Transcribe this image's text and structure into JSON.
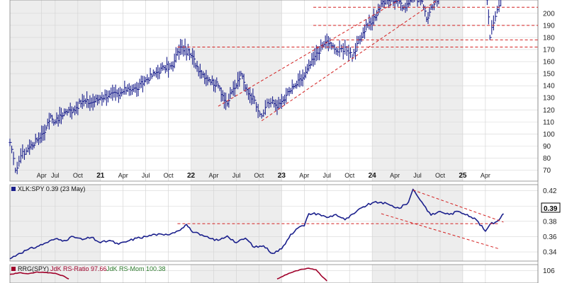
{
  "chart_data": {
    "type": "line",
    "time_labels": [
      {
        "t": 0.35,
        "label": "Apr",
        "kind": "month"
      },
      {
        "t": 0.5,
        "label": "Jul",
        "kind": "month"
      },
      {
        "t": 0.75,
        "label": "Oct",
        "kind": "month"
      },
      {
        "t": 1.0,
        "label": "21",
        "kind": "year"
      },
      {
        "t": 1.25,
        "label": "Apr",
        "kind": "month"
      },
      {
        "t": 1.5,
        "label": "Jul",
        "kind": "month"
      },
      {
        "t": 1.75,
        "label": "Oct",
        "kind": "month"
      },
      {
        "t": 2.0,
        "label": "22",
        "kind": "year"
      },
      {
        "t": 2.25,
        "label": "Apr",
        "kind": "month"
      },
      {
        "t": 2.5,
        "label": "Jul",
        "kind": "month"
      },
      {
        "t": 2.75,
        "label": "Oct",
        "kind": "month"
      },
      {
        "t": 3.0,
        "label": "23",
        "kind": "year"
      },
      {
        "t": 3.25,
        "label": "Apr",
        "kind": "month"
      },
      {
        "t": 3.5,
        "label": "Jul",
        "kind": "month"
      },
      {
        "t": 3.75,
        "label": "Oct",
        "kind": "month"
      },
      {
        "t": 4.0,
        "label": "24",
        "kind": "year"
      },
      {
        "t": 4.25,
        "label": "Apr",
        "kind": "month"
      },
      {
        "t": 4.5,
        "label": "Jul",
        "kind": "month"
      },
      {
        "t": 4.75,
        "label": "Oct",
        "kind": "month"
      },
      {
        "t": 5.0,
        "label": "25",
        "kind": "year"
      },
      {
        "t": 5.25,
        "label": "Apr",
        "kind": "month"
      }
    ],
    "price_panel": {
      "y_ticks": [
        70,
        80,
        90,
        100,
        110,
        120,
        130,
        140,
        150,
        160,
        170,
        180,
        190,
        200
      ],
      "y_range": [
        61,
        211
      ],
      "color": "#1a1f8c",
      "series": [
        {
          "t": 0.0,
          "v": 93
        },
        {
          "t": 0.06,
          "v": 70
        },
        {
          "t": 0.12,
          "v": 82
        },
        {
          "t": 0.2,
          "v": 88
        },
        {
          "t": 0.3,
          "v": 95
        },
        {
          "t": 0.4,
          "v": 105
        },
        {
          "t": 0.45,
          "v": 115
        },
        {
          "t": 0.5,
          "v": 110
        },
        {
          "t": 0.6,
          "v": 118
        },
        {
          "t": 0.7,
          "v": 120
        },
        {
          "t": 0.8,
          "v": 127
        },
        {
          "t": 0.9,
          "v": 126
        },
        {
          "t": 1.0,
          "v": 130
        },
        {
          "t": 1.1,
          "v": 133
        },
        {
          "t": 1.2,
          "v": 132
        },
        {
          "t": 1.3,
          "v": 138
        },
        {
          "t": 1.4,
          "v": 137
        },
        {
          "t": 1.5,
          "v": 145
        },
        {
          "t": 1.6,
          "v": 150
        },
        {
          "t": 1.7,
          "v": 155
        },
        {
          "t": 1.8,
          "v": 156
        },
        {
          "t": 1.85,
          "v": 168
        },
        {
          "t": 1.9,
          "v": 172
        },
        {
          "t": 2.0,
          "v": 165
        },
        {
          "t": 2.1,
          "v": 152
        },
        {
          "t": 2.2,
          "v": 145
        },
        {
          "t": 2.3,
          "v": 140
        },
        {
          "t": 2.4,
          "v": 125
        },
        {
          "t": 2.45,
          "v": 135
        },
        {
          "t": 2.5,
          "v": 140
        },
        {
          "t": 2.55,
          "v": 150
        },
        {
          "t": 2.6,
          "v": 138
        },
        {
          "t": 2.7,
          "v": 128
        },
        {
          "t": 2.78,
          "v": 115
        },
        {
          "t": 2.82,
          "v": 122
        },
        {
          "t": 2.9,
          "v": 128
        },
        {
          "t": 2.95,
          "v": 122
        },
        {
          "t": 3.0,
          "v": 127
        },
        {
          "t": 3.05,
          "v": 132
        },
        {
          "t": 3.15,
          "v": 140
        },
        {
          "t": 3.25,
          "v": 148
        },
        {
          "t": 3.35,
          "v": 162
        },
        {
          "t": 3.45,
          "v": 173
        },
        {
          "t": 3.5,
          "v": 177
        },
        {
          "t": 3.55,
          "v": 173
        },
        {
          "t": 3.62,
          "v": 168
        },
        {
          "t": 3.7,
          "v": 172
        },
        {
          "t": 3.78,
          "v": 163
        },
        {
          "t": 3.85,
          "v": 178
        },
        {
          "t": 3.95,
          "v": 190
        },
        {
          "t": 4.0,
          "v": 192
        },
        {
          "t": 4.1,
          "v": 208
        },
        {
          "t": 4.2,
          "v": 212
        },
        {
          "t": 4.3,
          "v": 210
        },
        {
          "t": 4.35,
          "v": 205
        },
        {
          "t": 4.45,
          "v": 214
        },
        {
          "t": 4.55,
          "v": 210
        },
        {
          "t": 4.6,
          "v": 195
        },
        {
          "t": 4.65,
          "v": 205
        },
        {
          "t": 4.75,
          "v": 215
        },
        {
          "t": 5.27,
          "v": 211
        },
        {
          "t": 5.3,
          "v": 180
        },
        {
          "t": 5.34,
          "v": 192
        },
        {
          "t": 5.38,
          "v": 203
        },
        {
          "t": 5.42,
          "v": 212
        }
      ],
      "resistance_lines": [
        {
          "t0": 1.85,
          "t1": 5.85,
          "v": 172
        },
        {
          "t0": 3.55,
          "t1": 5.85,
          "v": 178
        },
        {
          "t0": 3.35,
          "t1": 5.85,
          "v": 190
        },
        {
          "t0": 3.35,
          "t1": 5.85,
          "v": 205
        }
      ],
      "channel_lines": [
        {
          "t0": 2.3,
          "v0": 123,
          "t1": 4.5,
          "v1": 220
        },
        {
          "t0": 2.78,
          "v0": 111,
          "t1": 4.7,
          "v1": 210
        }
      ]
    },
    "rs_panel": {
      "legend_label": "XLK:SPY 0.39 (23 May)",
      "last_value_label": "0.39",
      "y_ticks": [
        0.34,
        0.36,
        0.38,
        0.4,
        0.42
      ],
      "y_range": [
        0.328,
        0.428
      ],
      "color": "#1a1f8c",
      "series": [
        {
          "t": 0.0,
          "v": 0.331
        },
        {
          "t": 0.1,
          "v": 0.338
        },
        {
          "t": 0.2,
          "v": 0.343
        },
        {
          "t": 0.3,
          "v": 0.347
        },
        {
          "t": 0.4,
          "v": 0.352
        },
        {
          "t": 0.5,
          "v": 0.357
        },
        {
          "t": 0.6,
          "v": 0.355
        },
        {
          "t": 0.7,
          "v": 0.36
        },
        {
          "t": 0.8,
          "v": 0.356
        },
        {
          "t": 0.9,
          "v": 0.359
        },
        {
          "t": 1.0,
          "v": 0.352
        },
        {
          "t": 1.1,
          "v": 0.355
        },
        {
          "t": 1.2,
          "v": 0.35
        },
        {
          "t": 1.3,
          "v": 0.354
        },
        {
          "t": 1.4,
          "v": 0.358
        },
        {
          "t": 1.5,
          "v": 0.36
        },
        {
          "t": 1.6,
          "v": 0.363
        },
        {
          "t": 1.7,
          "v": 0.362
        },
        {
          "t": 1.8,
          "v": 0.365
        },
        {
          "t": 1.9,
          "v": 0.371
        },
        {
          "t": 1.95,
          "v": 0.376
        },
        {
          "t": 2.0,
          "v": 0.368
        },
        {
          "t": 2.1,
          "v": 0.362
        },
        {
          "t": 2.2,
          "v": 0.358
        },
        {
          "t": 2.3,
          "v": 0.355
        },
        {
          "t": 2.4,
          "v": 0.361
        },
        {
          "t": 2.5,
          "v": 0.352
        },
        {
          "t": 2.6,
          "v": 0.358
        },
        {
          "t": 2.7,
          "v": 0.346
        },
        {
          "t": 2.8,
          "v": 0.348
        },
        {
          "t": 2.9,
          "v": 0.338
        },
        {
          "t": 3.0,
          "v": 0.344
        },
        {
          "t": 3.1,
          "v": 0.363
        },
        {
          "t": 3.2,
          "v": 0.373
        },
        {
          "t": 3.25,
          "v": 0.374
        },
        {
          "t": 3.3,
          "v": 0.39
        },
        {
          "t": 3.4,
          "v": 0.39
        },
        {
          "t": 3.5,
          "v": 0.385
        },
        {
          "t": 3.6,
          "v": 0.389
        },
        {
          "t": 3.7,
          "v": 0.382
        },
        {
          "t": 3.8,
          "v": 0.39
        },
        {
          "t": 3.9,
          "v": 0.399
        },
        {
          "t": 4.0,
          "v": 0.404
        },
        {
          "t": 4.1,
          "v": 0.405
        },
        {
          "t": 4.2,
          "v": 0.401
        },
        {
          "t": 4.3,
          "v": 0.397
        },
        {
          "t": 4.4,
          "v": 0.405
        },
        {
          "t": 4.45,
          "v": 0.422
        },
        {
          "t": 4.55,
          "v": 0.405
        },
        {
          "t": 4.65,
          "v": 0.388
        },
        {
          "t": 4.75,
          "v": 0.393
        },
        {
          "t": 4.85,
          "v": 0.389
        },
        {
          "t": 4.95,
          "v": 0.393
        },
        {
          "t": 5.05,
          "v": 0.389
        },
        {
          "t": 5.15,
          "v": 0.382
        },
        {
          "t": 5.25,
          "v": 0.367
        },
        {
          "t": 5.3,
          "v": 0.376
        },
        {
          "t": 5.38,
          "v": 0.38
        },
        {
          "t": 5.45,
          "v": 0.39
        }
      ],
      "support_line": {
        "t0": 1.85,
        "t1": 5.4,
        "v": 0.377
      },
      "channel_lines": [
        {
          "t0": 4.45,
          "v0": 0.421,
          "t1": 5.45,
          "v1": 0.379
        },
        {
          "t0": 4.1,
          "v0": 0.39,
          "t1": 5.4,
          "v1": 0.344
        }
      ]
    },
    "rrg_panel": {
      "legend_label_main": "RRG(SPY)",
      "legend_label_ratio": "JdK RS-Ratio 97.66",
      "legend_label_mom": "JdK RS-Mom 100.38",
      "y_ticks": [
        106
      ],
      "y_range": [
        94,
        112
      ],
      "ratio_color": "#a0002a",
      "mom_color": "#2a7a2a",
      "ratio_series": [
        {
          "t": 0.0,
          "v": 102.5
        },
        {
          "t": 0.1,
          "v": 104.0
        },
        {
          "t": 0.2,
          "v": 103.0
        },
        {
          "t": 0.3,
          "v": 104.8
        },
        {
          "t": 0.4,
          "v": 104.3
        },
        {
          "t": 0.5,
          "v": 103.5
        },
        {
          "t": 0.6,
          "v": 100.5
        },
        {
          "t": 0.65,
          "v": 98.0
        },
        {
          "t": 2.95,
          "v": 98.0
        },
        {
          "t": 3.1,
          "v": 104.0
        },
        {
          "t": 3.2,
          "v": 107.0
        },
        {
          "t": 3.3,
          "v": 108.5
        },
        {
          "t": 3.38,
          "v": 107.0
        },
        {
          "t": 3.45,
          "v": 100.0
        },
        {
          "t": 3.5,
          "v": 96.0
        }
      ]
    }
  }
}
